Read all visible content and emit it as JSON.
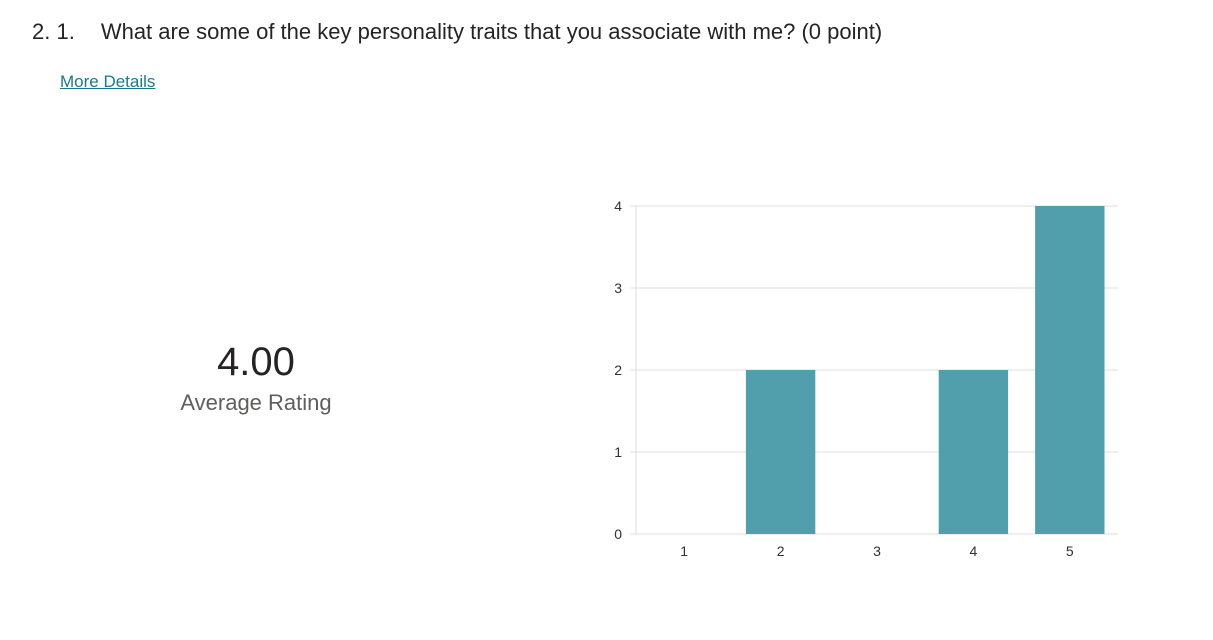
{
  "question": {
    "number": "2. 1.",
    "text": "What are some of the key personality traits that you associate with me? (0 point)",
    "more_details": "More Details"
  },
  "summary": {
    "average": "4.00",
    "label": "Average Rating"
  },
  "colors": {
    "bar": "#519fac",
    "link": "#1a7a8a",
    "grid": "#e1dfdd"
  },
  "chart_data": {
    "type": "bar",
    "categories": [
      "1",
      "2",
      "3",
      "4",
      "5"
    ],
    "values": [
      0,
      2,
      0,
      2,
      4
    ],
    "ylim": [
      0,
      4
    ],
    "yticks": [
      0,
      1,
      2,
      3,
      4
    ],
    "grid": true
  }
}
